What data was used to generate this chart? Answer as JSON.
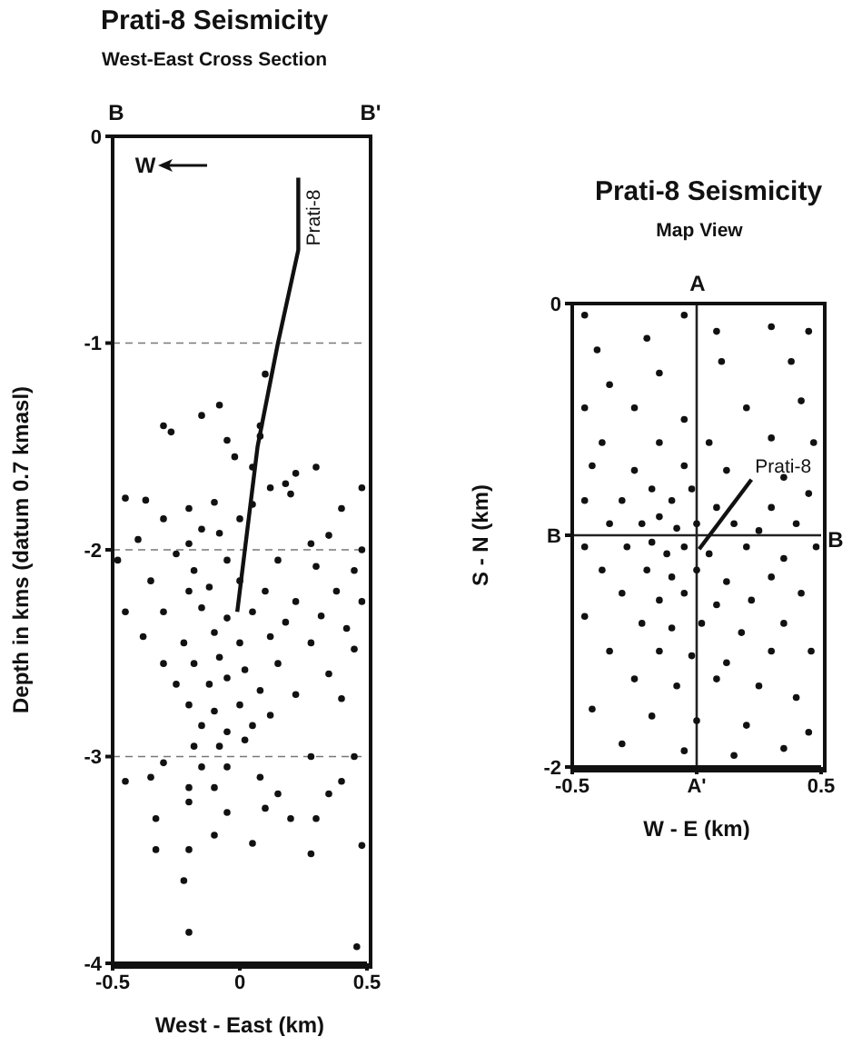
{
  "chart_data": [
    {
      "type": "scatter",
      "title": "Prati-8 Seismicity",
      "subtitle": "West-East Cross Section",
      "xlabel": "West - East (km)",
      "ylabel": "Depth in kms  (datum 0.7 kmasl)",
      "xlim": [
        -0.5,
        0.5
      ],
      "xticks": [
        -0.5,
        0,
        0.5
      ],
      "ylim": [
        -4,
        0
      ],
      "yticks": [
        0,
        -1,
        -2,
        -3,
        -4
      ],
      "grid": "y",
      "marker": "circle",
      "annotations": [
        "B",
        "B'",
        "W"
      ],
      "series": [
        {
          "type": "scatter",
          "color": "#111111",
          "x": [
            0.1,
            -0.08,
            -0.15,
            -0.3,
            -0.27,
            0.08,
            0.08,
            -0.05,
            -0.02,
            0.3,
            0.22,
            0.18,
            0.12,
            0.05,
            -0.45,
            -0.37,
            -0.2,
            -0.1,
            0.05,
            0.2,
            0.4,
            -0.3,
            -0.15,
            0,
            0.35,
            -0.4,
            -0.2,
            -0.08,
            0.28,
            -0.48,
            -0.25,
            -0.18,
            -0.05,
            0.15,
            0.3,
            0.45,
            -0.35,
            -0.2,
            -0.12,
            0,
            0.1,
            0.22,
            0.38,
            0.48,
            -0.45,
            -0.3,
            -0.15,
            -0.05,
            0.05,
            0.18,
            0.32,
            0.42,
            -0.38,
            -0.22,
            -0.1,
            0,
            0.12,
            0.28,
            0.45,
            -0.3,
            -0.18,
            -0.08,
            0.02,
            0.15,
            0.35,
            -0.25,
            -0.12,
            -0.05,
            0.08,
            0.22,
            0.4,
            -0.2,
            -0.1,
            0,
            0.12,
            -0.15,
            -0.05,
            0.05,
            -0.18,
            -0.08,
            0.02,
            0.28,
            0.45,
            -0.3,
            -0.15,
            -0.05,
            0.08,
            -0.45,
            -0.35,
            -0.2,
            -0.1,
            0.15,
            0.4,
            -0.2,
            0.1,
            0.35,
            -0.33,
            -0.05,
            0.2,
            0.3,
            -0.1,
            0.05,
            -0.33,
            -0.2,
            0.28,
            0.48,
            -0.22,
            -0.2,
            0.46,
            0.48,
            0.48
          ],
          "values": [
            -1.15,
            -1.3,
            -1.35,
            -1.4,
            -1.43,
            -1.4,
            -1.45,
            -1.47,
            -1.55,
            -1.6,
            -1.63,
            -1.68,
            -1.7,
            -1.6,
            -1.75,
            -1.76,
            -1.8,
            -1.77,
            -1.78,
            -1.73,
            -1.8,
            -1.85,
            -1.9,
            -1.85,
            -1.93,
            -1.95,
            -1.97,
            -1.92,
            -1.97,
            -2.05,
            -2.02,
            -2.1,
            -2.05,
            -2.05,
            -2.08,
            -2.1,
            -2.15,
            -2.2,
            -2.18,
            -2.15,
            -2.2,
            -2.25,
            -2.2,
            -2.25,
            -2.3,
            -2.3,
            -2.28,
            -2.33,
            -2.3,
            -2.35,
            -2.32,
            -2.38,
            -2.42,
            -2.45,
            -2.4,
            -2.45,
            -2.42,
            -2.45,
            -2.48,
            -2.55,
            -2.55,
            -2.52,
            -2.58,
            -2.55,
            -2.6,
            -2.65,
            -2.65,
            -2.62,
            -2.68,
            -2.7,
            -2.72,
            -2.75,
            -2.78,
            -2.75,
            -2.8,
            -2.85,
            -2.88,
            -2.85,
            -2.95,
            -2.95,
            -2.92,
            -3,
            -3,
            -3.03,
            -3.05,
            -3.05,
            -3.1,
            -3.12,
            -3.1,
            -3.15,
            -3.15,
            -3.18,
            -3.12,
            -3.22,
            -3.25,
            -3.18,
            -3.3,
            -3.27,
            -3.3,
            -3.3,
            -3.38,
            -3.42,
            -3.45,
            -3.45,
            -3.47,
            -3.43,
            -3.6,
            -3.85,
            -3.92,
            -1.7,
            -2
          ]
        },
        {
          "type": "line",
          "name": "Prati-8",
          "color": "#111111",
          "marker": "none",
          "x": [
            0.23,
            0.23,
            0.15,
            0.07,
            0.02,
            -0.01
          ],
          "values": [
            -0.2,
            -0.55,
            -1,
            -1.5,
            -2,
            -2.3
          ]
        }
      ]
    },
    {
      "type": "scatter",
      "title": "Prati-8 Seismicity",
      "subtitle": "Map View",
      "xlabel": "W - E  (km)",
      "ylabel": "S - N  (km)",
      "xlim": [
        -0.5,
        0.5
      ],
      "xticks": [
        -0.5,
        {
          "value": 0,
          "label": "A'"
        },
        0.5
      ],
      "ylim": [
        -2,
        0
      ],
      "yticks": [
        0,
        {
          "value": -1,
          "label": "B"
        },
        -2
      ],
      "marker": "circle",
      "annotations": [
        "A",
        "B"
      ],
      "ref_lines": [
        {
          "axis": "x",
          "value": 0,
          "color": "#222222"
        },
        {
          "axis": "y",
          "value": -1,
          "color": "#222222"
        }
      ],
      "series": [
        {
          "type": "scatter",
          "color": "#111111",
          "x": [
            -0.45,
            -0.4,
            -0.2,
            -0.05,
            0.08,
            0.3,
            0.45,
            -0.35,
            -0.15,
            0.1,
            0.38,
            -0.45,
            -0.25,
            -0.05,
            0.2,
            0.42,
            -0.38,
            -0.15,
            0.05,
            0.3,
            0.47,
            -0.42,
            -0.25,
            -0.05,
            0.12,
            0.35,
            -0.45,
            -0.3,
            -0.18,
            -0.1,
            -0.02,
            0.08,
            0.3,
            0.45,
            -0.35,
            -0.22,
            -0.15,
            -0.08,
            0,
            0.15,
            0.25,
            0.4,
            -0.45,
            -0.28,
            -0.18,
            -0.12,
            -0.05,
            0.05,
            0.2,
            0.35,
            0.48,
            -0.38,
            -0.2,
            -0.1,
            0,
            0.12,
            0.3,
            -0.3,
            -0.15,
            -0.05,
            0.08,
            0.22,
            0.42,
            -0.45,
            -0.22,
            -0.1,
            0.02,
            0.18,
            0.35,
            -0.35,
            -0.15,
            -0.02,
            0.12,
            0.3,
            0.46,
            -0.25,
            -0.08,
            0.08,
            0.25,
            0.4,
            -0.42,
            -0.18,
            0,
            0.2,
            0.45,
            -0.3,
            -0.05,
            0.15,
            0.35
          ],
          "values": [
            -0.05,
            -0.2,
            -0.15,
            -0.05,
            -0.12,
            -0.1,
            -0.12,
            -0.35,
            -0.3,
            -0.25,
            -0.25,
            -0.45,
            -0.45,
            -0.5,
            -0.45,
            -0.42,
            -0.6,
            -0.6,
            -0.6,
            -0.58,
            -0.6,
            -0.7,
            -0.72,
            -0.7,
            -0.72,
            -0.75,
            -0.85,
            -0.85,
            -0.8,
            -0.85,
            -0.8,
            -0.88,
            -0.88,
            -0.82,
            -0.95,
            -0.95,
            -0.92,
            -0.97,
            -0.95,
            -0.95,
            -0.98,
            -0.95,
            -1.05,
            -1.05,
            -1.03,
            -1.08,
            -1.05,
            -1.08,
            -1.05,
            -1.1,
            -1.05,
            -1.15,
            -1.15,
            -1.18,
            -1.15,
            -1.2,
            -1.18,
            -1.25,
            -1.28,
            -1.25,
            -1.3,
            -1.28,
            -1.25,
            -1.35,
            -1.38,
            -1.4,
            -1.38,
            -1.42,
            -1.38,
            -1.5,
            -1.5,
            -1.52,
            -1.55,
            -1.5,
            -1.5,
            -1.62,
            -1.65,
            -1.62,
            -1.65,
            -1.7,
            -1.75,
            -1.78,
            -1.8,
            -1.82,
            -1.85,
            -1.9,
            -1.93,
            -1.95,
            -1.92
          ]
        },
        {
          "type": "line",
          "name": "Prati-8",
          "color": "#111111",
          "marker": "none",
          "x": [
            0.01,
            0.22
          ],
          "values": [
            -1.06,
            -0.76
          ]
        }
      ]
    }
  ]
}
